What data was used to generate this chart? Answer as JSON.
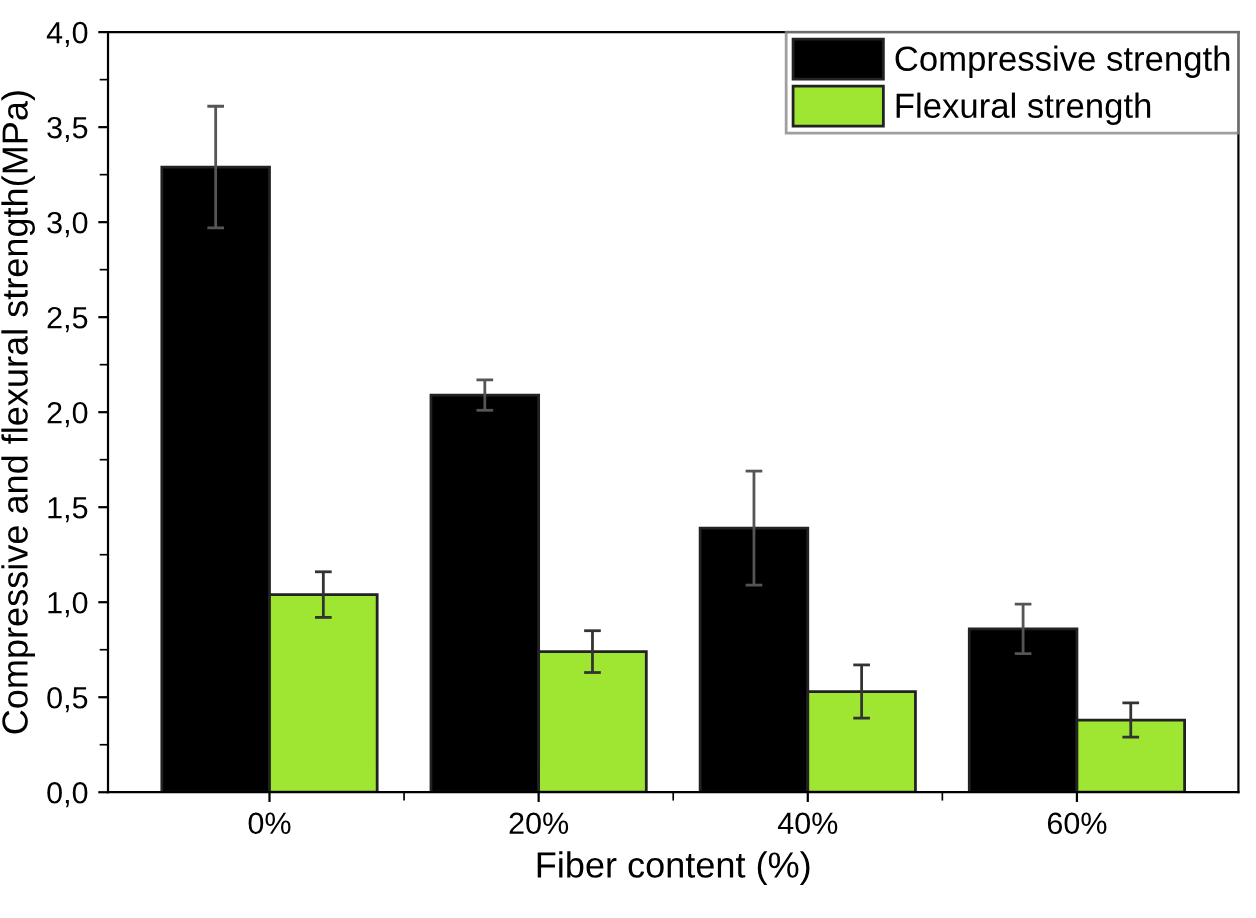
{
  "chart_data": {
    "type": "bar",
    "xlabel": "Fiber content (%)",
    "ylabel": "Compressive and flexural strength(MPa)",
    "categories": [
      "0%",
      "20%",
      "40%",
      "60%"
    ],
    "series": [
      {
        "name": "Compressive strength",
        "color": "#000000",
        "values": [
          3.29,
          2.09,
          1.39,
          0.86
        ],
        "errors": [
          0.32,
          0.08,
          0.3,
          0.13
        ]
      },
      {
        "name": "Flexural strength",
        "color": "#9ee632",
        "values": [
          1.04,
          0.74,
          0.53,
          0.38
        ],
        "errors": [
          0.12,
          0.11,
          0.14,
          0.09
        ]
      }
    ],
    "ylim": [
      0,
      4.0
    ],
    "yticks": [
      {
        "value": 0,
        "label": "0,0"
      },
      {
        "value": 0.5,
        "label": "0,5"
      },
      {
        "value": 1.0,
        "label": "1,0"
      },
      {
        "value": 1.5,
        "label": "1,5"
      },
      {
        "value": 2.0,
        "label": "2,0"
      },
      {
        "value": 2.5,
        "label": "2,5"
      },
      {
        "value": 3.0,
        "label": "3,0"
      },
      {
        "value": 3.5,
        "label": "3,5"
      },
      {
        "value": 4.0,
        "label": "4,0"
      }
    ],
    "legend": "top right",
    "grid": false
  }
}
